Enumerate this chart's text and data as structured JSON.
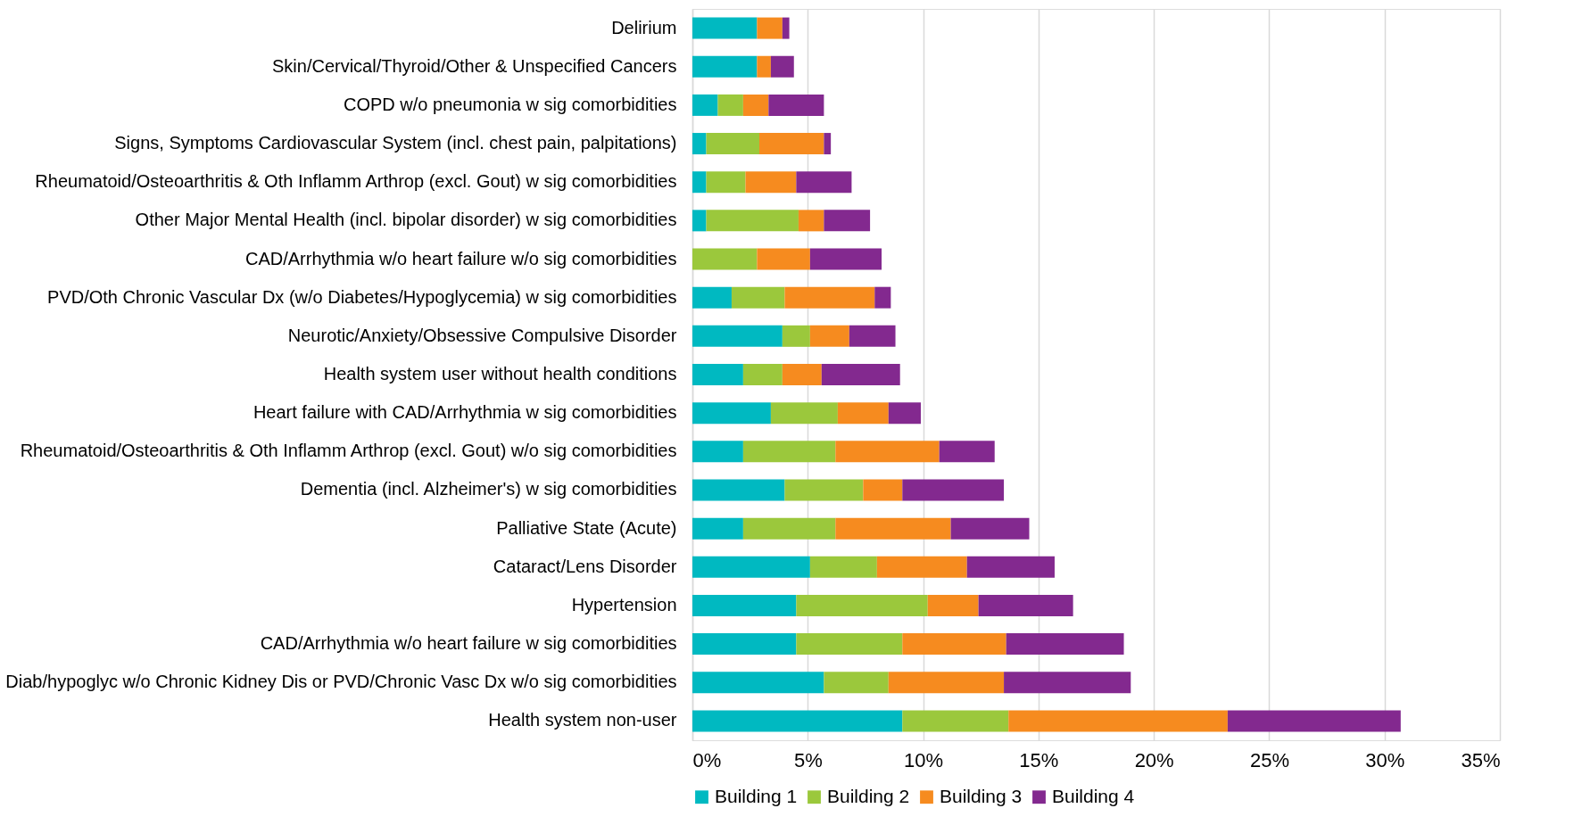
{
  "chart_data": {
    "type": "bar",
    "orientation": "horizontal",
    "stacked": true,
    "categories": [
      "Delirium",
      "Skin/Cervical/Thyroid/Other & Unspecified Cancers",
      "COPD w/o pneumonia w sig comorbidities",
      "Signs, Symptoms Cardiovascular System (incl. chest pain, palpitations)",
      "Rheumatoid/Osteoarthritis & Oth Inflamm Arthrop (excl. Gout) w sig comorbidities",
      "Other Major Mental Health (incl. bipolar disorder) w sig comorbidities",
      "CAD/Arrhythmia w/o heart failure w/o sig comorbidities",
      "PVD/Oth Chronic Vascular Dx (w/o Diabetes/Hypoglycemia) w sig comorbidities",
      "Neurotic/Anxiety/Obsessive Compulsive Disorder",
      "Health system user without health conditions",
      "Heart failure with CAD/Arrhythmia w sig comorbidities",
      "Rheumatoid/Osteoarthritis & Oth Inflamm Arthrop (excl. Gout) w/o sig comorbidities",
      "Dementia (incl. Alzheimer's) w sig comorbidities",
      "Palliative State (Acute)",
      "Cataract/Lens Disorder",
      "Hypertension",
      "CAD/Arrhythmia w/o heart failure w sig comorbidities",
      "Diab/hypoglyc w/o Chronic Kidney Dis or PVD/Chronic Vasc Dx w/o sig comorbidities",
      "Health system non-user"
    ],
    "series": [
      {
        "name": "Building 1",
        "color": "#00b9c1",
        "values": [
          2.8,
          2.8,
          1.1,
          0.6,
          0.6,
          0.6,
          0,
          1.7,
          3.9,
          2.2,
          3.4,
          2.2,
          4.0,
          2.2,
          5.1,
          4.5,
          4.5,
          5.7,
          9.1
        ]
      },
      {
        "name": "Building 2",
        "color": "#9bc83c",
        "values": [
          0,
          0,
          1.1,
          2.3,
          1.7,
          4.0,
          2.8,
          2.3,
          1.2,
          1.7,
          2.9,
          4.0,
          3.4,
          4.0,
          2.9,
          5.7,
          4.6,
          2.8,
          4.6
        ]
      },
      {
        "name": "Building 3",
        "color": "#f68b1f",
        "values": [
          1.1,
          0.6,
          1.1,
          2.8,
          2.2,
          1.1,
          2.3,
          3.9,
          1.7,
          1.7,
          2.2,
          4.5,
          1.7,
          5.0,
          3.9,
          2.2,
          4.5,
          5.0,
          9.5
        ]
      },
      {
        "name": "Building 4",
        "color": "#83298f",
        "values": [
          0.3,
          1.0,
          2.4,
          0.3,
          2.4,
          2.0,
          3.1,
          0.7,
          2.0,
          3.4,
          1.4,
          2.4,
          4.4,
          3.4,
          3.8,
          4.1,
          5.1,
          5.5,
          7.5
        ]
      }
    ],
    "xlim": [
      0,
      35
    ],
    "xticks": [
      {
        "value": 0,
        "label": "0%"
      },
      {
        "value": 5,
        "label": "5%"
      },
      {
        "value": 10,
        "label": "10%"
      },
      {
        "value": 15,
        "label": "15%"
      },
      {
        "value": 20,
        "label": "20%"
      },
      {
        "value": 25,
        "label": "25%"
      },
      {
        "value": 30,
        "label": "30%"
      },
      {
        "value": 35,
        "label": "35%"
      }
    ],
    "grid": "x",
    "legend": "bottom"
  }
}
